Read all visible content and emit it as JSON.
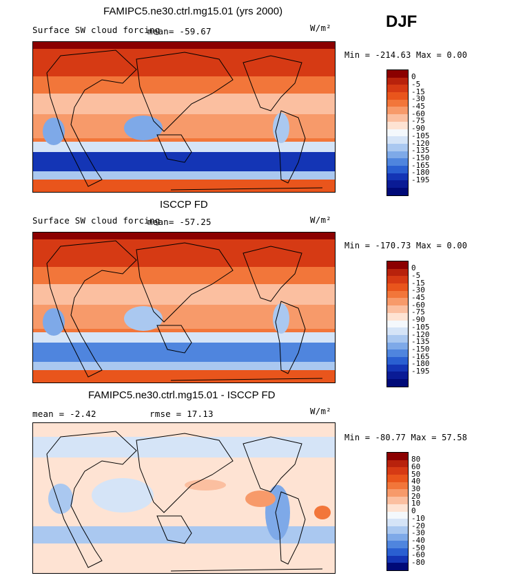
{
  "season": "DJF",
  "panels": [
    {
      "title": "FAMIPC5.ne30.ctrl.mg15.01 (yrs 2000)",
      "variable": "Surface SW cloud forcing",
      "mean_text": "mean= -59.67",
      "units": "W/m²",
      "minmax_text": "Min = -214.63 Max =   0.00",
      "colorbar_labels": [
        "0",
        "-5",
        "-15",
        "-30",
        "-45",
        "-60",
        "-75",
        "-90",
        "-105",
        "-120",
        "-135",
        "-150",
        "-165",
        "-180",
        "-195"
      ],
      "colorbar_colors": [
        "#8b0000",
        "#b8220c",
        "#d63a14",
        "#e9551c",
        "#f2763a",
        "#f79a6a",
        "#fbbfa0",
        "#fee3d3",
        "#f4f8fc",
        "#d5e4f7",
        "#aac8f0",
        "#7ea9e8",
        "#4f85de",
        "#2a5fd1",
        "#1435b5",
        "#0a1b95",
        "#000a78"
      ],
      "chart_data": {
        "type": "heatmap",
        "title": "FAMIPC5.ne30.ctrl.mg15.01 (yrs 2000)",
        "variable": "Surface SW cloud forcing",
        "units": "W/m2",
        "mean": -59.67,
        "min": -214.63,
        "max": 0.0,
        "contour_levels": [
          0,
          -5,
          -15,
          -30,
          -45,
          -60,
          -75,
          -90,
          -105,
          -120,
          -135,
          -150,
          -165,
          -180,
          -195
        ]
      }
    },
    {
      "title": "ISCCP FD",
      "variable": "Surface SW cloud forcing",
      "mean_text": "mean= -57.25",
      "units": "W/m²",
      "minmax_text": "Min = -170.73 Max =   0.00",
      "colorbar_labels": [
        "0",
        "-5",
        "-15",
        "-30",
        "-45",
        "-60",
        "-75",
        "-90",
        "-105",
        "-120",
        "-135",
        "-150",
        "-165",
        "-180",
        "-195"
      ],
      "colorbar_colors": [
        "#8b0000",
        "#b8220c",
        "#d63a14",
        "#e9551c",
        "#f2763a",
        "#f79a6a",
        "#fbbfa0",
        "#fee3d3",
        "#f4f8fc",
        "#d5e4f7",
        "#aac8f0",
        "#7ea9e8",
        "#4f85de",
        "#2a5fd1",
        "#1435b5",
        "#0a1b95",
        "#000a78"
      ],
      "chart_data": {
        "type": "heatmap",
        "title": "ISCCP FD",
        "variable": "Surface SW cloud forcing",
        "units": "W/m2",
        "mean": -57.25,
        "min": -170.73,
        "max": 0.0,
        "contour_levels": [
          0,
          -5,
          -15,
          -30,
          -45,
          -60,
          -75,
          -90,
          -105,
          -120,
          -135,
          -150,
          -165,
          -180,
          -195
        ]
      }
    },
    {
      "title": "FAMIPC5.ne30.ctrl.mg15.01 - ISCCP FD",
      "mean_text": "mean =   -2.42",
      "rmse_text": "rmse =   17.13",
      "units": "W/m²",
      "minmax_text": "Min = -80.77 Max =  57.58",
      "colorbar_labels": [
        "80",
        "60",
        "50",
        "40",
        "30",
        "20",
        "10",
        "0",
        "-10",
        "-20",
        "-30",
        "-40",
        "-50",
        "-60",
        "-80"
      ],
      "colorbar_colors": [
        "#8b0000",
        "#b8220c",
        "#d63a14",
        "#e9551c",
        "#f2763a",
        "#f79a6a",
        "#fbbfa0",
        "#fee3d3",
        "#f4f8fc",
        "#d5e4f7",
        "#aac8f0",
        "#7ea9e8",
        "#4f85de",
        "#2a5fd1",
        "#1435b5",
        "#000a78"
      ],
      "chart_data": {
        "type": "heatmap",
        "title": "FAMIPC5.ne30.ctrl.mg15.01 - ISCCP FD",
        "units": "W/m2",
        "mean": -2.42,
        "rmse": 17.13,
        "min": -80.77,
        "max": 57.58,
        "contour_levels": [
          80,
          60,
          50,
          40,
          30,
          20,
          10,
          0,
          -10,
          -20,
          -30,
          -40,
          -50,
          -60,
          -80
        ]
      }
    }
  ]
}
